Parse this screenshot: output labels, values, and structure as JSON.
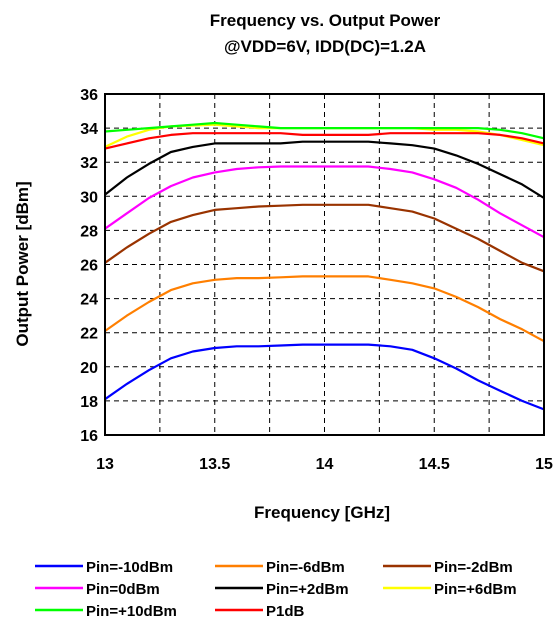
{
  "chart_data": {
    "type": "line",
    "title": "Frequency  vs. Output Power",
    "subtitle": "@VDD=6V, IDD(DC)=1.2A",
    "xlabel": "Frequency [GHz]",
    "ylabel": "Output Power [dBm]",
    "xlim": [
      13,
      15
    ],
    "ylim": [
      16,
      36
    ],
    "xticks": [
      "13",
      "13.5",
      "14",
      "14.5",
      "15"
    ],
    "yticks": [
      "16",
      "18",
      "20",
      "22",
      "24",
      "26",
      "28",
      "30",
      "32",
      "34",
      "36"
    ],
    "grid": true,
    "legend_position": "bottom",
    "x": [
      13.0,
      13.1,
      13.2,
      13.3,
      13.4,
      13.5,
      13.6,
      13.7,
      13.8,
      13.9,
      14.0,
      14.1,
      14.2,
      14.3,
      14.4,
      14.5,
      14.6,
      14.7,
      14.8,
      14.9,
      15.0
    ],
    "series": [
      {
        "name": "Pin=-10dBm",
        "color": "#0000ff",
        "values": [
          18.1,
          19.0,
          19.8,
          20.5,
          20.9,
          21.1,
          21.2,
          21.2,
          21.25,
          21.3,
          21.3,
          21.3,
          21.3,
          21.2,
          21.0,
          20.5,
          19.9,
          19.2,
          18.6,
          18.0,
          17.5
        ]
      },
      {
        "name": "Pin=-6dBm",
        "color": "#ff7f00",
        "values": [
          22.1,
          23.0,
          23.8,
          24.5,
          24.9,
          25.1,
          25.2,
          25.2,
          25.25,
          25.3,
          25.3,
          25.3,
          25.3,
          25.1,
          24.9,
          24.6,
          24.1,
          23.5,
          22.8,
          22.2,
          21.5
        ]
      },
      {
        "name": "Pin=-2dBm",
        "color": "#993300",
        "values": [
          26.1,
          27.0,
          27.8,
          28.5,
          28.9,
          29.2,
          29.3,
          29.4,
          29.45,
          29.5,
          29.5,
          29.5,
          29.5,
          29.3,
          29.1,
          28.7,
          28.1,
          27.5,
          26.8,
          26.1,
          25.6
        ]
      },
      {
        "name": "Pin=0dBm",
        "color": "#ff00ff",
        "values": [
          28.1,
          29.0,
          29.9,
          30.6,
          31.1,
          31.4,
          31.6,
          31.7,
          31.75,
          31.75,
          31.75,
          31.75,
          31.75,
          31.6,
          31.4,
          31.0,
          30.5,
          29.8,
          29.0,
          28.3,
          27.6
        ]
      },
      {
        "name": "Pin=+2dBm",
        "color": "#000000",
        "values": [
          30.1,
          31.1,
          31.9,
          32.6,
          32.9,
          33.1,
          33.1,
          33.1,
          33.1,
          33.2,
          33.2,
          33.2,
          33.2,
          33.1,
          33.0,
          32.8,
          32.4,
          31.9,
          31.3,
          30.7,
          29.9
        ]
      },
      {
        "name": "Pin=+6dBm",
        "color": "#ffff00",
        "values": [
          32.9,
          33.5,
          33.9,
          34.1,
          34.15,
          34.2,
          34.1,
          34.0,
          34.0,
          34.0,
          34.0,
          34.0,
          34.0,
          34.0,
          34.0,
          33.9,
          33.9,
          33.8,
          33.6,
          33.3,
          33.0
        ]
      },
      {
        "name": "Pin=+10dBm",
        "color": "#00ff00",
        "values": [
          33.8,
          33.9,
          34.0,
          34.1,
          34.2,
          34.3,
          34.2,
          34.1,
          34.0,
          34.0,
          34.0,
          34.0,
          34.0,
          34.0,
          34.0,
          34.0,
          34.0,
          34.0,
          33.9,
          33.7,
          33.4
        ]
      },
      {
        "name": "P1dB",
        "color": "#ff0000",
        "values": [
          32.8,
          33.1,
          33.4,
          33.6,
          33.7,
          33.7,
          33.7,
          33.7,
          33.7,
          33.6,
          33.6,
          33.6,
          33.6,
          33.7,
          33.7,
          33.7,
          33.7,
          33.7,
          33.6,
          33.4,
          33.1
        ]
      }
    ]
  }
}
